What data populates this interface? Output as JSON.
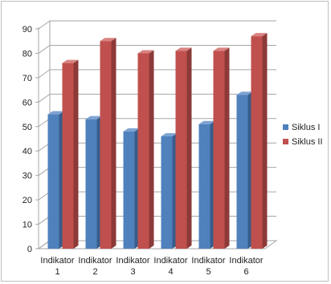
{
  "chart_data": {
    "type": "bar",
    "categories": [
      [
        "Indikator",
        "1"
      ],
      [
        "Indikator",
        "2"
      ],
      [
        "Indikator",
        "3"
      ],
      [
        "Indikator",
        "4"
      ],
      [
        "Indikator",
        "5"
      ],
      [
        "Indikator",
        "6"
      ]
    ],
    "series": [
      {
        "name": "Siklus I",
        "color": "#4f81bd",
        "side": "#385d8a",
        "top": "#7ea3d3",
        "values": [
          55,
          53,
          48,
          46,
          51,
          63
        ]
      },
      {
        "name": "Siklus II",
        "color": "#c0504d",
        "side": "#8c3a38",
        "top": "#d98381",
        "values": [
          76,
          85,
          80,
          81,
          81,
          87
        ]
      }
    ],
    "ylim": [
      0,
      90
    ],
    "yticks": [
      0,
      10,
      20,
      30,
      40,
      50,
      60,
      70,
      80,
      90
    ],
    "grid": true,
    "legend": "right",
    "title": "",
    "xlabel": "",
    "ylabel": ""
  }
}
